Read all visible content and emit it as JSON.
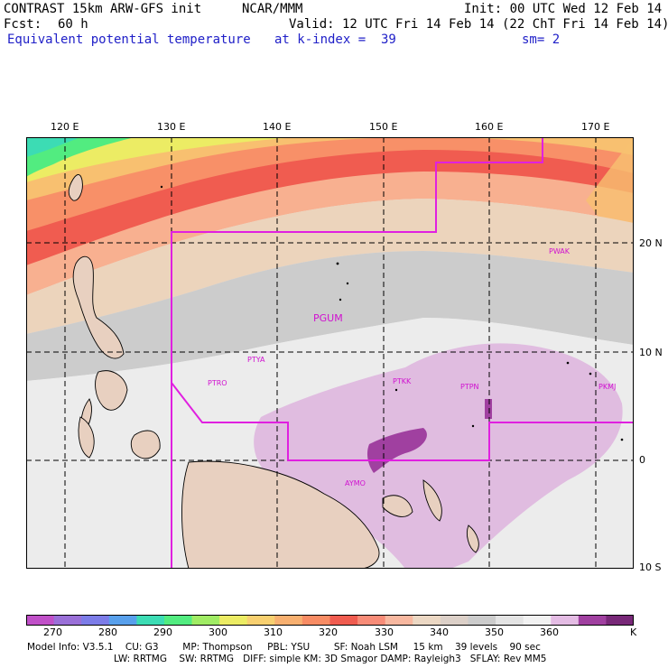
{
  "header": {
    "model_title": "CONTRAST 15km ARW-GFS init",
    "org": "NCAR/MMM",
    "init": "Init: 00 UTC Wed 12 Feb 14",
    "fcst_label": "Fcst:",
    "fcst_value": "60 h",
    "valid": "Valid: 12 UTC Fri 14 Feb 14 (22 ChT Fri 14 Feb 14)",
    "field": "Equivalent potential temperature",
    "k_index": "at k-index =  39",
    "smoothing": "sm= 2"
  },
  "map": {
    "lon_labels": [
      "120 E",
      "130 E",
      "140 E",
      "150 E",
      "160 E",
      "170 E"
    ],
    "lat_labels": [
      "20 N",
      "10 N",
      "0",
      "10 S"
    ],
    "stations": [
      "PGUM",
      "PTYA",
      "PTRO",
      "PTKK",
      "PTPN",
      "PKMJ",
      "PWAK",
      "AYMO"
    ]
  },
  "colorbar": {
    "labels": [
      "270",
      "280",
      "290",
      "300",
      "310",
      "320",
      "330",
      "340",
      "350",
      "360"
    ],
    "unit": "K",
    "colors": [
      "#c050c8",
      "#9a70d8",
      "#7c7ce8",
      "#58a0ec",
      "#3cdcb4",
      "#52ec80",
      "#a0ec64",
      "#ecec64",
      "#f8d070",
      "#f8b070",
      "#f88c64",
      "#f05c50",
      "#f88c78",
      "#f8b8a0",
      "#ecd8c4",
      "#dcd0c8",
      "#cccccc",
      "#e4e4e4",
      "#f2f2f2",
      "#e4bce4",
      "#a040a0",
      "#782878"
    ]
  },
  "footer": {
    "line1": "Model Info: V3.5.1    CU: G3        MP: Thompson     PBL: YSU        SF: Noah LSM     15 km    39 levels    90 sec",
    "line2": "LW: RRTMG    SW: RRTMG   DIFF: simple KM: 3D Smagor DAMP: Rayleigh3   SFLAY: Rev MM5"
  }
}
